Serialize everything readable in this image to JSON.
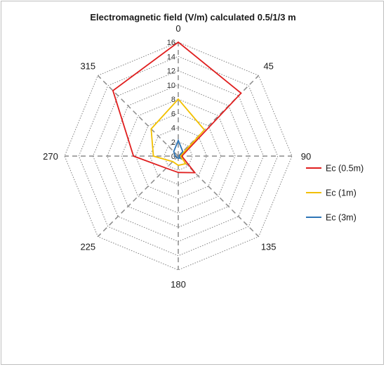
{
  "chart_data": {
    "type": "radar",
    "title": "Electromagnetic field (V/m) calculated 0.5/1/3 m",
    "categories": [
      "0",
      "45",
      "90",
      "135",
      "180",
      "225",
      "270",
      "315"
    ],
    "radial_ticks": [
      "0",
      "2",
      "4",
      "6",
      "8",
      "10",
      "12",
      "14",
      "16"
    ],
    "rlim": [
      0,
      16
    ],
    "grid": true,
    "legend_position": "right",
    "series": [
      {
        "name": "Ec (0.5m)",
        "color": "#e01e1e",
        "values": [
          16,
          12.5,
          0.5,
          3.3,
          2.3,
          2.4,
          6.3,
          13
        ]
      },
      {
        "name": "Ec (1m)",
        "color": "#f2c000",
        "values": [
          8,
          5.2,
          0.3,
          1.5,
          1.3,
          1.1,
          3.5,
          5.4
        ]
      },
      {
        "name": "Ec (3m)",
        "color": "#2e75b6",
        "values": [
          2.2,
          0.9,
          0.1,
          0.4,
          0.3,
          0.3,
          0.4,
          0.9
        ]
      }
    ]
  }
}
